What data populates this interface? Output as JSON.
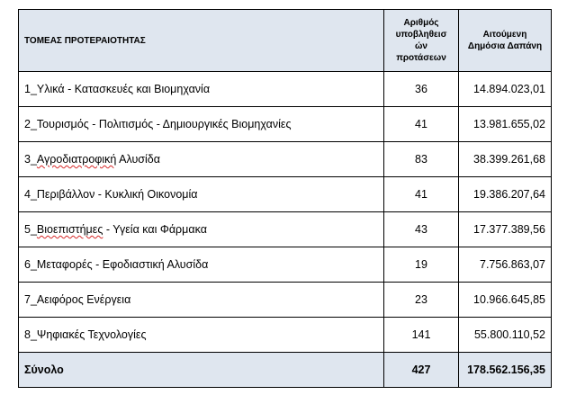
{
  "table": {
    "headers": {
      "sector": "ΤΟΜΕΑΣ ΠΡΟΤΕΡΑΙΟΤΗΤΑΣ",
      "count_lines": [
        "Αριθμός",
        "υποβληθεισ",
        "ών",
        "προτάσεων"
      ],
      "spend_lines": [
        "Αιτούμενη",
        "Δημόσια Δαπάνη"
      ]
    },
    "rows": [
      {
        "prefix": "1_",
        "marked": "",
        "rest": "Υλικά - Κατασκευές και Βιομηχανία",
        "count": "36",
        "spend": "14.894.023,01"
      },
      {
        "prefix": "2_",
        "marked": "",
        "rest": "Τουρισμός - Πολιτισμός - Δημιουργικές Βιομηχανίες",
        "count": "41",
        "spend": "13.981.655,02"
      },
      {
        "prefix": "3_",
        "marked": "Αγροδιατροφική",
        "rest": " Αλυσίδα",
        "count": "83",
        "spend": "38.399.261,68"
      },
      {
        "prefix": "4_",
        "marked": "",
        "rest": "Περιβάλλον - Κυκλική Οικονομία",
        "count": "41",
        "spend": "19.386.207,64"
      },
      {
        "prefix": "5_",
        "marked": "Βιοεπιστήμες",
        "rest": " - Υγεία και Φάρμακα",
        "count": "43",
        "spend": "17.377.389,56"
      },
      {
        "prefix": "6_",
        "marked": "",
        "rest": "Μεταφορές - Εφοδιαστική Αλυσίδα",
        "count": "19",
        "spend": "7.756.863,07"
      },
      {
        "prefix": "7_",
        "marked": "",
        "rest": "Αειφόρος Ενέργεια",
        "count": "23",
        "spend": "10.966.645,85"
      },
      {
        "prefix": "8_",
        "marked": "",
        "rest": "Ψηφιακές Τεχνολογίες",
        "count": "141",
        "spend": "55.800.110,52"
      }
    ],
    "total": {
      "label": "Σύνολο",
      "count": "427",
      "spend": "178.562.156,35"
    }
  }
}
